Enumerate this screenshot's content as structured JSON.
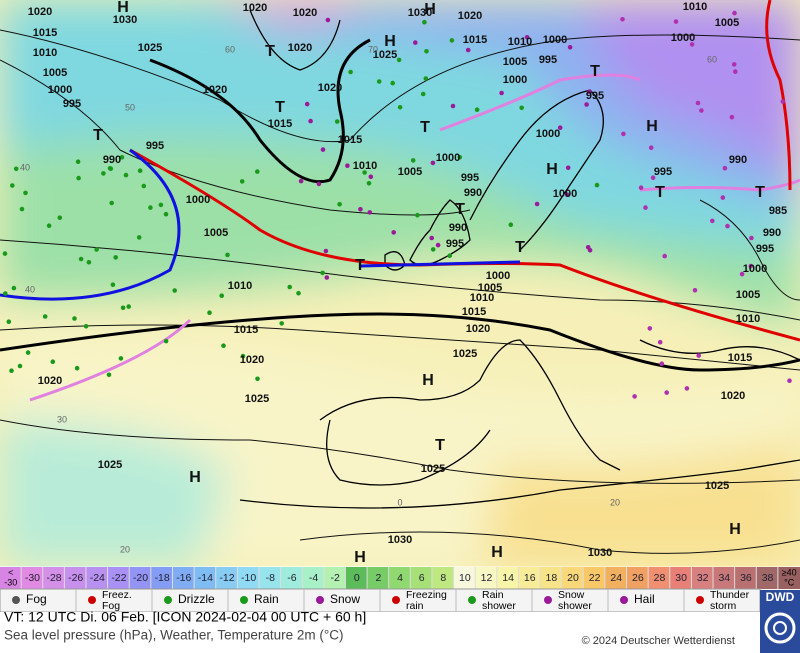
{
  "map": {
    "isobar_labels": [
      1020,
      1030,
      1015,
      1025,
      1010,
      1005,
      1000,
      995,
      1020,
      1020,
      1020,
      1020,
      1030,
      1020,
      1025,
      1015,
      1010,
      1000,
      995,
      1005,
      1000,
      1020,
      1015,
      1015,
      1010,
      1005,
      1000,
      995,
      990,
      990,
      995,
      1000,
      1000,
      995,
      1000,
      1010,
      1005,
      990,
      995,
      985,
      990,
      995,
      1000,
      1005,
      1010,
      1015,
      1020,
      990,
      995,
      1000,
      1005,
      1010,
      1015,
      1020,
      1025,
      1020,
      1025,
      1025,
      1025,
      1030,
      1030,
      1025,
      1000,
      1005,
      1010,
      1015,
      1020
    ],
    "pressure_centers": [
      "H",
      "T",
      "T",
      "H",
      "H",
      "T",
      "T",
      "H",
      "H",
      "T",
      "T",
      "T",
      "T",
      "T",
      "T",
      "H",
      "T",
      "H",
      "H",
      "H",
      "H"
    ],
    "isotherm_labels": [
      60,
      50,
      40,
      40,
      30,
      20,
      20,
      0,
      60,
      70
    ]
  },
  "temperature_scale": {
    "low_label": [
      "<",
      "-30"
    ],
    "low_color": "#d884e4",
    "values": [
      -30,
      -28,
      -26,
      -24,
      -22,
      -20,
      -18,
      -16,
      -14,
      -12,
      -10,
      -8,
      -6,
      -4,
      -2,
      0,
      2,
      4,
      6,
      8,
      10,
      12,
      14,
      16,
      18,
      20,
      22,
      24,
      26,
      28,
      30,
      32,
      34,
      36,
      38
    ],
    "colors": [
      "#e08ae4",
      "#d490e8",
      "#c690ec",
      "#b890f0",
      "#a890f4",
      "#9494f4",
      "#849cf4",
      "#80acf4",
      "#80bcf4",
      "#88ccf4",
      "#90daf4",
      "#98e4ec",
      "#a0ecdc",
      "#a8f0c8",
      "#b4f0b0",
      "#5cbc5c",
      "#78cc68",
      "#90d870",
      "#a8e078",
      "#c0e880",
      "#f8f8dc",
      "#f8f8c4",
      "#f8f4a8",
      "#f8ec98",
      "#f8e488",
      "#f8d878",
      "#f8c868",
      "#f0b060",
      "#f0a060",
      "#f09070",
      "#e88078",
      "#d88080",
      "#c87878",
      "#b87070",
      "#a06868"
    ],
    "high_label": [
      "≥40",
      "°C"
    ],
    "high_color": "#986060"
  },
  "weather_legend": [
    "Fog",
    "Freez. Fog",
    "Drizzle",
    "Rain",
    "Snow",
    "Freezing rain",
    "Rain shower",
    "Snow shower",
    "Hail",
    "Thunder storm"
  ],
  "footer": {
    "valid_time": "VT: 12 UTC Di.  06 Feb. [ICON 2024-02-04  00 UTC + 60 h]",
    "description": "Sea level pressure (hPa), Weather, Temperature 2m (°C)",
    "copyright": "© 2024 Deutscher Wetterdienst",
    "logo": "DWD"
  }
}
